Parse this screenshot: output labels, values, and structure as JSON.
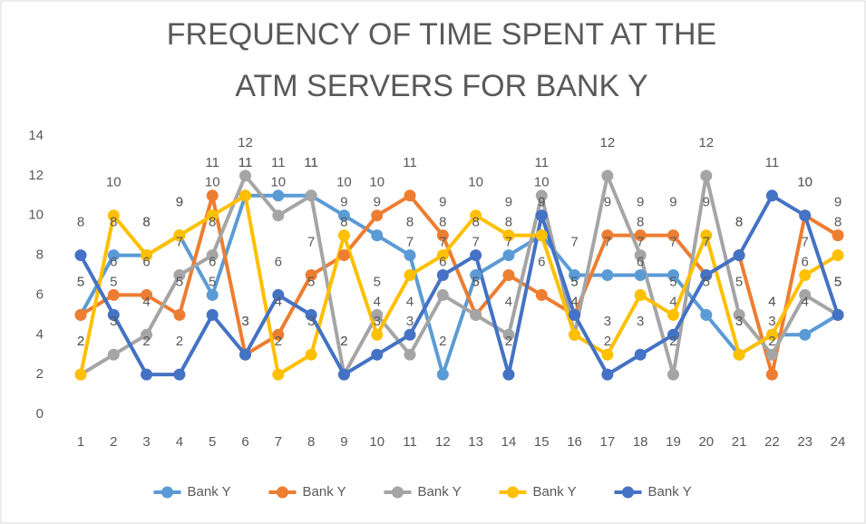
{
  "chart_data": {
    "type": "line",
    "title": [
      "FREQUENCY OF TIME SPENT AT THE",
      "ATM SERVERS FOR BANK Y"
    ],
    "categories": [
      "1",
      "2",
      "3",
      "4",
      "5",
      "6",
      "7",
      "8",
      "9",
      "10",
      "11",
      "12",
      "13",
      "14",
      "15",
      "16",
      "17",
      "18",
      "19",
      "20",
      "21",
      "22",
      "23",
      "24"
    ],
    "series": [
      {
        "name": "Bank Y",
        "color": "#5b9bd5",
        "values": [
          5,
          8,
          8,
          9,
          6,
          11,
          11,
          11,
          10,
          9,
          8,
          2,
          7,
          8,
          9,
          7,
          7,
          7,
          7,
          5,
          3,
          4,
          4,
          5
        ]
      },
      {
        "name": "Bank Y",
        "color": "#ed7d31",
        "values": [
          5,
          6,
          6,
          5,
          11,
          3,
          4,
          7,
          8,
          10,
          11,
          9,
          5,
          7,
          6,
          5,
          9,
          9,
          9,
          7,
          8,
          2,
          10,
          9
        ]
      },
      {
        "name": "Bank Y",
        "color": "#a5a5a5",
        "values": [
          2,
          3,
          4,
          7,
          8,
          12,
          10,
          11,
          2,
          5,
          3,
          6,
          5,
          4,
          11,
          4,
          12,
          8,
          2,
          12,
          5,
          3,
          6,
          5
        ]
      },
      {
        "name": "Bank Y",
        "color": "#ffc000",
        "values": [
          2,
          10,
          8,
          9,
          10,
          11,
          2,
          3,
          9,
          4,
          7,
          8,
          10,
          9,
          9,
          4,
          3,
          6,
          5,
          9,
          3,
          4,
          7,
          8
        ]
      },
      {
        "name": "Bank Y",
        "color": "#4472c4",
        "values": [
          8,
          5,
          2,
          2,
          5,
          3,
          6,
          5,
          2,
          3,
          4,
          7,
          8,
          2,
          10,
          5,
          2,
          3,
          4,
          7,
          8,
          11,
          10,
          5
        ]
      }
    ],
    "ylim": [
      0,
      14
    ],
    "yticks": [
      0,
      2,
      4,
      6,
      8,
      10,
      12,
      14
    ],
    "grid": false,
    "legend": "bottom"
  }
}
